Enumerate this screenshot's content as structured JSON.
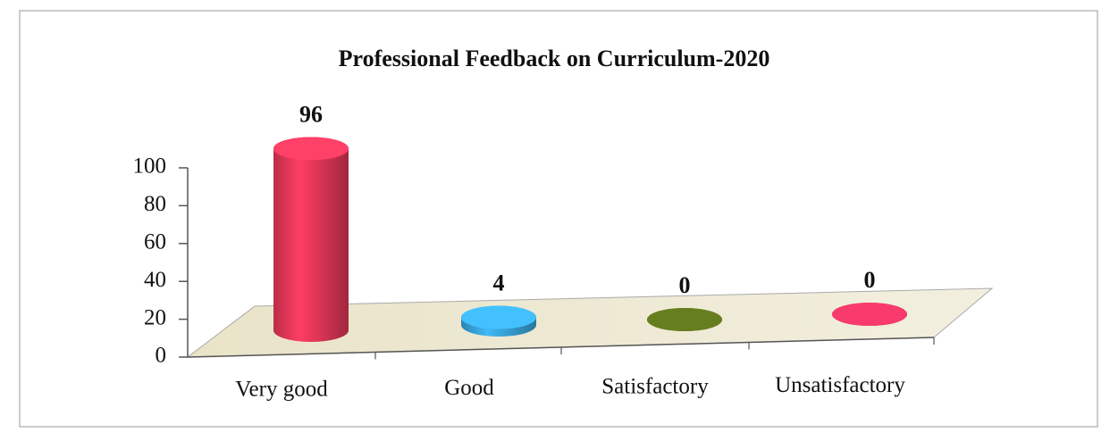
{
  "chart_data": {
    "type": "bar",
    "title": "Professional Feedback on Curriculum-2020",
    "categories": [
      "Very good",
      "Good",
      "Satisfactory",
      "Unsatisfactory"
    ],
    "values": [
      96,
      4,
      0,
      0
    ],
    "colors": [
      "#e8385a",
      "#3aa8e0",
      "#5a6e1a",
      "#d8335e"
    ],
    "ylim": [
      0,
      100
    ],
    "yticks": [
      0,
      20,
      40,
      60,
      80,
      100
    ]
  }
}
